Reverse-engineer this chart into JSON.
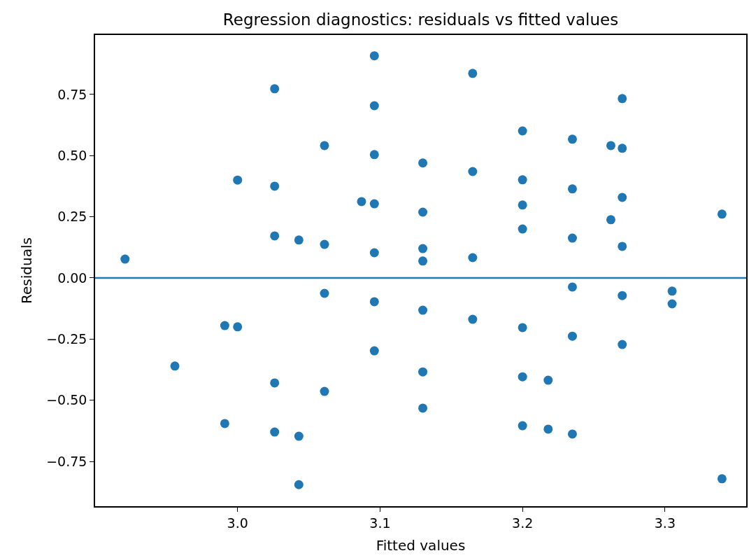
{
  "chart_data": {
    "type": "scatter",
    "title": "Regression diagnostics: residuals vs fitted values",
    "xlabel": "Fitted values",
    "ylabel": "Residuals",
    "x": [
      2.921,
      2.956,
      2.991,
      2.991,
      3.0,
      3.0,
      3.026,
      3.026,
      3.026,
      3.026,
      3.026,
      3.043,
      3.043,
      3.043,
      3.061,
      3.061,
      3.061,
      3.061,
      3.087,
      3.096,
      3.096,
      3.096,
      3.096,
      3.096,
      3.096,
      3.096,
      3.13,
      3.13,
      3.13,
      3.13,
      3.13,
      3.13,
      3.13,
      3.165,
      3.165,
      3.165,
      3.165,
      3.2,
      3.2,
      3.2,
      3.2,
      3.2,
      3.2,
      3.2,
      3.218,
      3.218,
      3.235,
      3.235,
      3.235,
      3.235,
      3.235,
      3.235,
      3.262,
      3.262,
      3.27,
      3.27,
      3.27,
      3.27,
      3.27,
      3.27,
      3.305,
      3.305,
      3.34,
      3.34
    ],
    "series": [
      {
        "color": "#1f77b4",
        "values": [
          0.077,
          -0.36,
          -0.195,
          -0.595,
          0.4,
          -0.2,
          0.773,
          0.375,
          0.172,
          -0.429,
          -0.63,
          0.155,
          -0.647,
          -0.845,
          0.541,
          0.137,
          -0.063,
          -0.464,
          0.312,
          0.908,
          0.704,
          0.504,
          0.303,
          0.103,
          -0.097,
          -0.298,
          0.47,
          0.269,
          0.12,
          0.069,
          -0.132,
          -0.384,
          -0.532,
          0.836,
          0.435,
          0.083,
          -0.169,
          0.601,
          0.401,
          0.298,
          0.2,
          -0.203,
          -0.404,
          -0.604,
          -0.418,
          -0.618,
          0.567,
          0.364,
          0.163,
          -0.037,
          -0.238,
          -0.638,
          0.541,
          0.238,
          0.733,
          0.53,
          0.329,
          0.129,
          -0.072,
          -0.272,
          -0.054,
          -0.106,
          0.261,
          -0.821
        ]
      }
    ],
    "xlim": [
      2.9,
      3.357
    ],
    "ylim": [
      -0.933,
      0.993
    ],
    "xticks": [
      {
        "value": 3.0,
        "label": "3.0"
      },
      {
        "value": 3.1,
        "label": "3.1"
      },
      {
        "value": 3.2,
        "label": "3.2"
      },
      {
        "value": 3.3,
        "label": "3.3"
      }
    ],
    "yticks": [
      {
        "value": -0.75,
        "label": "−0.75"
      },
      {
        "value": -0.5,
        "label": "−0.50"
      },
      {
        "value": -0.25,
        "label": "−0.25"
      },
      {
        "value": 0,
        "label": "0.00"
      },
      {
        "value": 0.25,
        "label": "0.25"
      },
      {
        "value": 0.5,
        "label": "0.50"
      },
      {
        "value": 0.75,
        "label": "0.75"
      }
    ],
    "ref_lines": [
      {
        "axis": "y",
        "value": 0,
        "color": "#1f77b4",
        "line_style": "solid"
      }
    ],
    "marker": "circle",
    "grid": false,
    "legend": false
  }
}
